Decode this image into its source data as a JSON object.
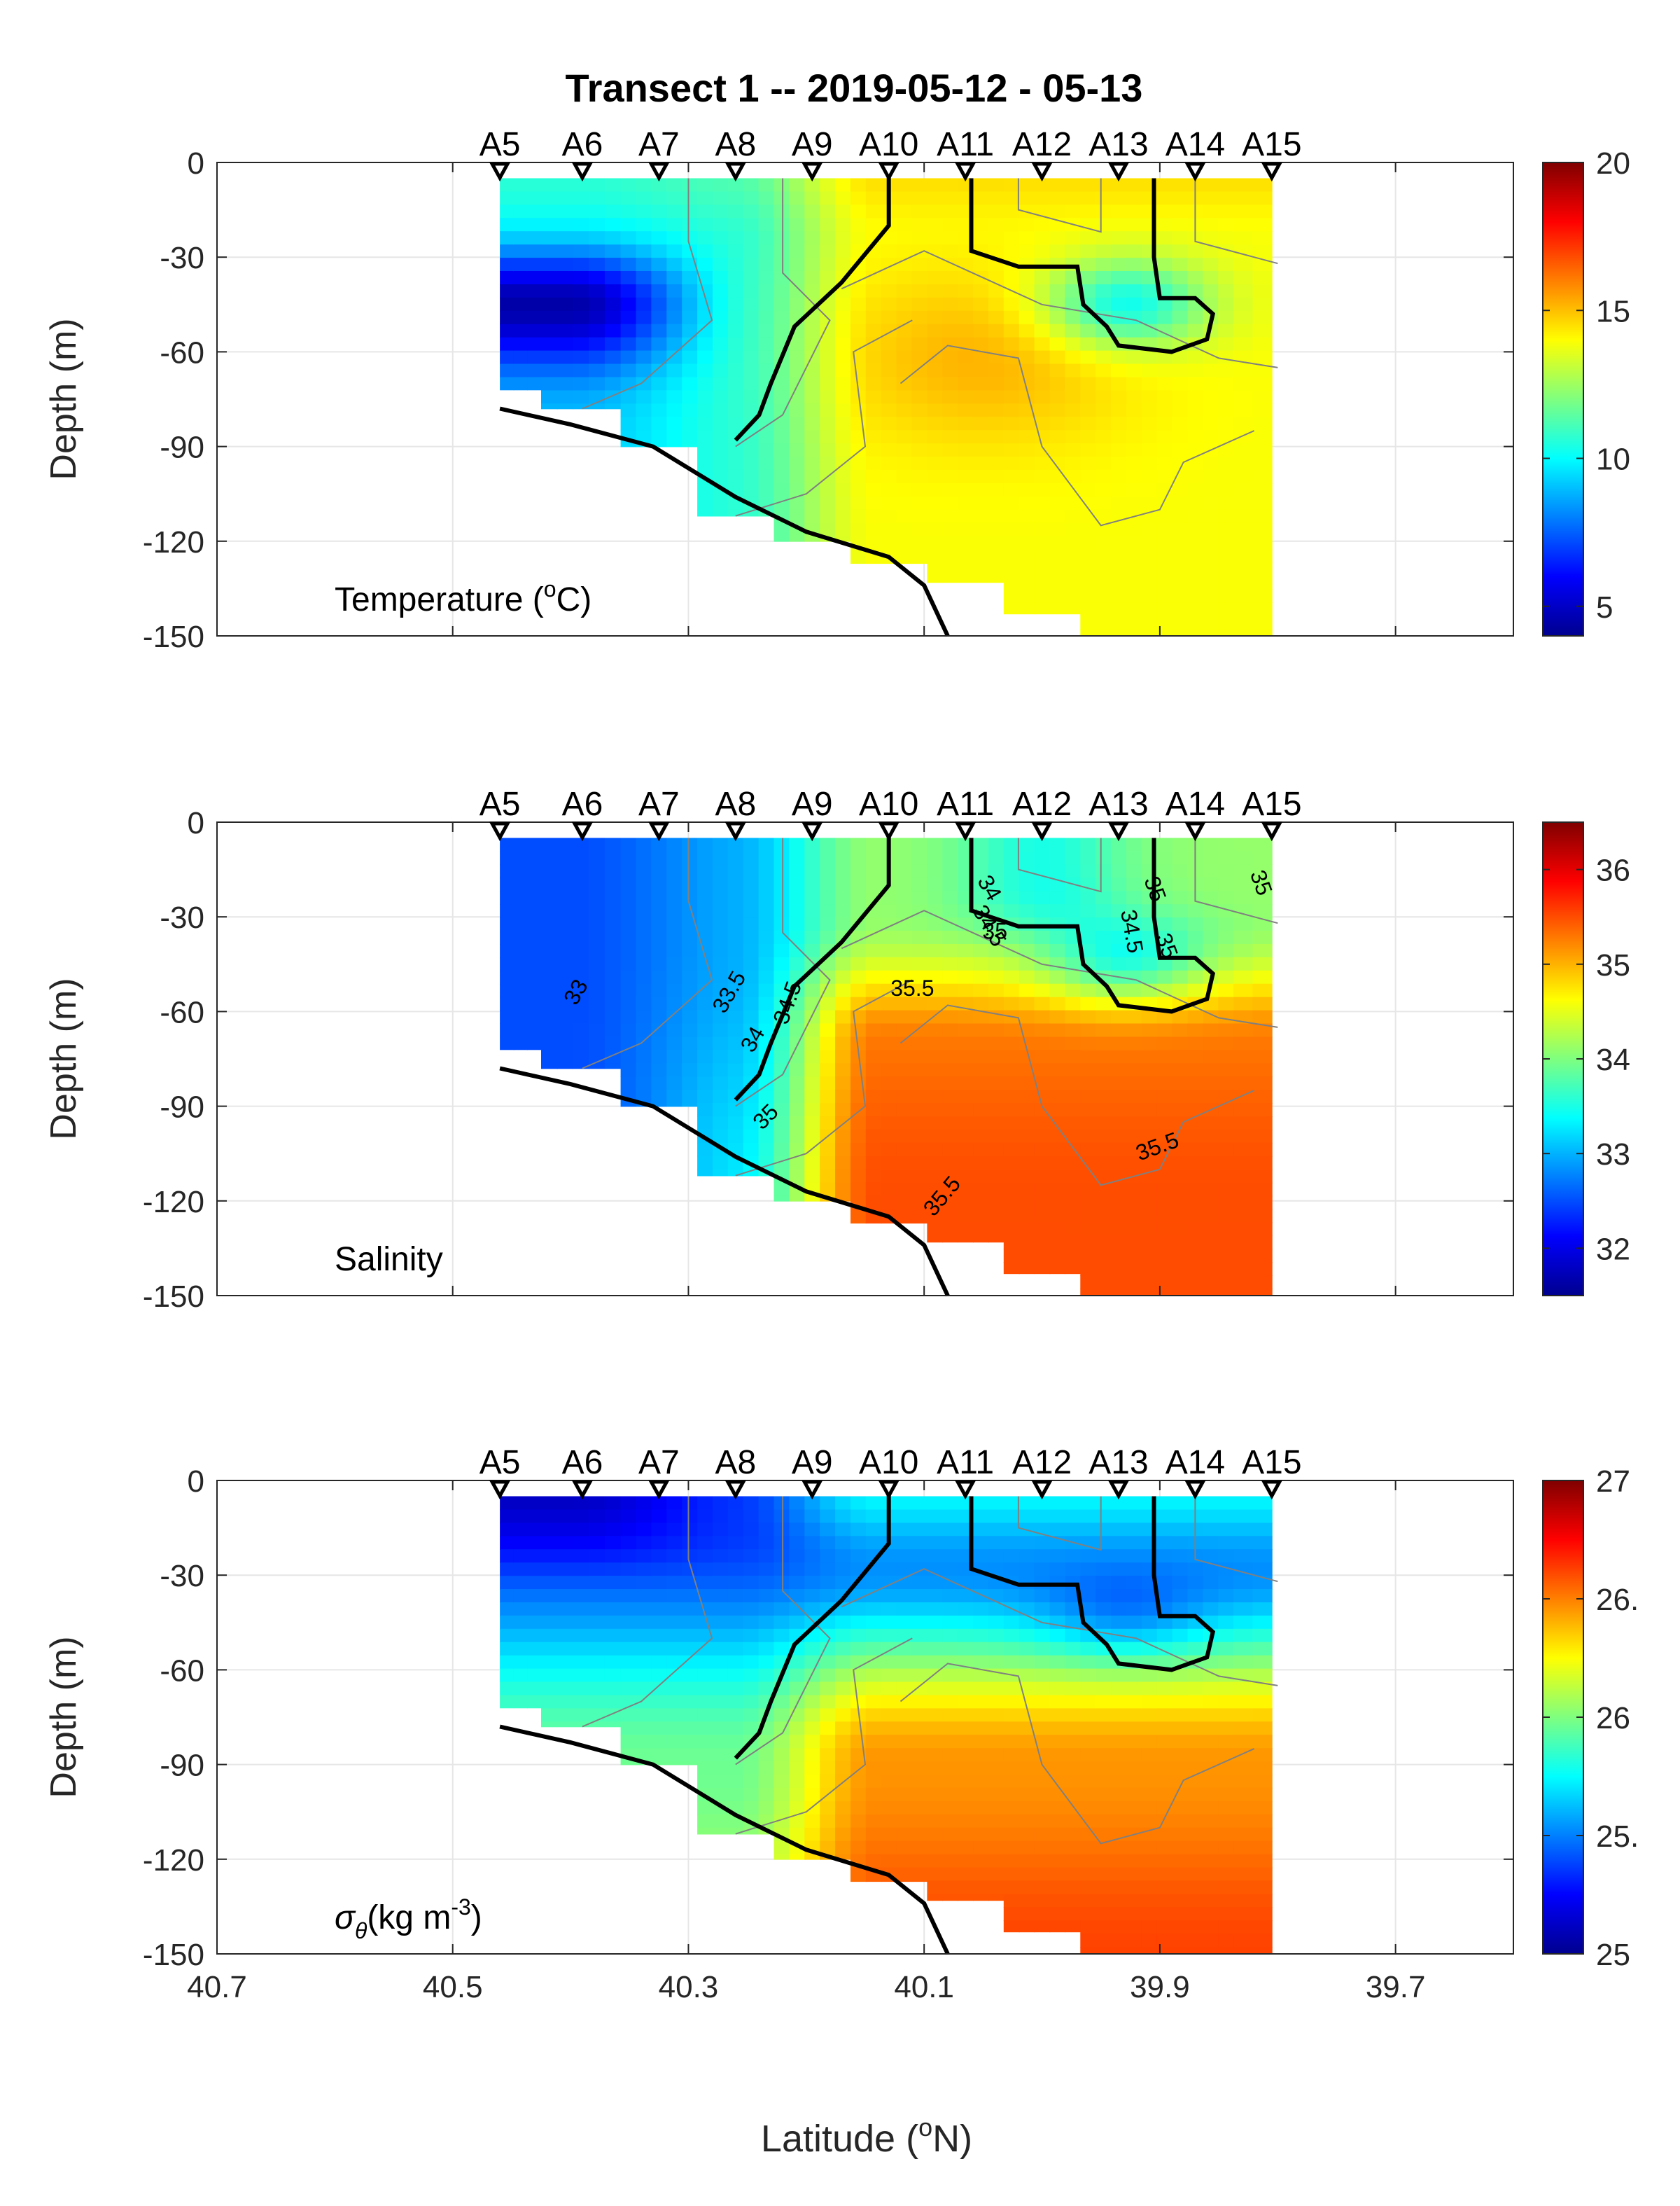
{
  "figure": {
    "title": "Transect 1 -- 2019-05-12 - 05-13",
    "xlabel": "Latitude (°N)",
    "xlabel_text": "Latitude (",
    "xlabel_sup": "o",
    "xlabel_tail": "N)",
    "colors": {
      "contour": "#808080",
      "front": "#000000",
      "grid": "#e6e6e6"
    }
  },
  "chart_data": [
    {
      "type": "heatmap",
      "title": "",
      "panel_label": "Temperature (°C)",
      "panel_label_parts": {
        "text": "Temperature (",
        "sup": "o",
        "tail": "C)"
      },
      "xlabel": "Latitude (°N)",
      "ylabel": "Depth (m)",
      "xlim": [
        40.7,
        39.6
      ],
      "x_reversed": true,
      "x_ticks": [
        "40.7",
        "40.5",
        "40.3",
        "40.1",
        "39.9",
        "39.7"
      ],
      "ylim": [
        -150,
        0
      ],
      "y_ticks": [
        "0",
        "-30",
        "-60",
        "-90",
        "-120",
        "-150"
      ],
      "colorbar": {
        "range": [
          4,
          20
        ],
        "ticks": [
          "5",
          "10",
          "15",
          "20"
        ],
        "colormap": "jet"
      },
      "stations": [
        "A5",
        "A6",
        "A7",
        "A8",
        "A9",
        "A10",
        "A11",
        "A12",
        "A13",
        "A14",
        "A15"
      ],
      "station_lat": [
        40.46,
        40.39,
        40.325,
        40.26,
        40.195,
        40.13,
        40.065,
        40.0,
        39.935,
        39.87,
        39.805
      ],
      "station_max_depth": [
        -72,
        -78,
        -90,
        -112,
        -120,
        -127,
        -133,
        -143,
        -150,
        -150,
        -150
      ],
      "bottom_profile": [
        [
          40.46,
          -78
        ],
        [
          40.4,
          -83
        ],
        [
          40.33,
          -90
        ],
        [
          40.26,
          -106
        ],
        [
          40.2,
          -117
        ],
        [
          40.13,
          -125
        ],
        [
          40.1,
          -134
        ],
        [
          40.08,
          -150
        ]
      ],
      "grid": true,
      "color_range_depth_top": [
        -5,
        -150
      ]
    },
    {
      "type": "heatmap",
      "title": "",
      "panel_label": "Salinity",
      "xlabel": "Latitude (°N)",
      "ylabel": "Depth (m)",
      "xlim": [
        40.7,
        39.6
      ],
      "x_reversed": true,
      "x_ticks": [
        "40.7",
        "40.5",
        "40.3",
        "40.1",
        "39.9",
        "39.7"
      ],
      "ylim": [
        -150,
        0
      ],
      "y_ticks": [
        "0",
        "-30",
        "-60",
        "-90",
        "-120",
        "-150"
      ],
      "colorbar": {
        "range": [
          31.5,
          36.5
        ],
        "ticks": [
          "32",
          "33",
          "34",
          "35",
          "36"
        ],
        "colormap": "jet"
      },
      "contour_labels": [
        "33",
        "33.5",
        "34",
        "34.5",
        "35",
        "35.5",
        "35.5",
        "35.5",
        "34",
        "34.5",
        "35",
        "35",
        "34.5",
        "35",
        "35"
      ],
      "grid": true
    },
    {
      "type": "heatmap",
      "title": "",
      "panel_label": "σθ(kg m-3)",
      "panel_label_parts": {
        "sigma": "σ",
        "sub": "θ",
        "text": "(kg m",
        "sup": "-3",
        "tail": ")"
      },
      "xlabel": "Latitude (°N)",
      "ylabel": "Depth (m)",
      "xlim": [
        40.7,
        39.6
      ],
      "x_reversed": true,
      "x_ticks": [
        "40.7",
        "40.5",
        "40.3",
        "40.1",
        "39.9",
        "39.7"
      ],
      "ylim": [
        -150,
        0
      ],
      "y_ticks": [
        "0",
        "-30",
        "-60",
        "-90",
        "-120",
        "-150"
      ],
      "colorbar": {
        "range": [
          25,
          27
        ],
        "ticks": [
          "25",
          "25.",
          "26",
          "26.",
          "27"
        ],
        "colormap": "jet"
      },
      "grid": true
    }
  ]
}
